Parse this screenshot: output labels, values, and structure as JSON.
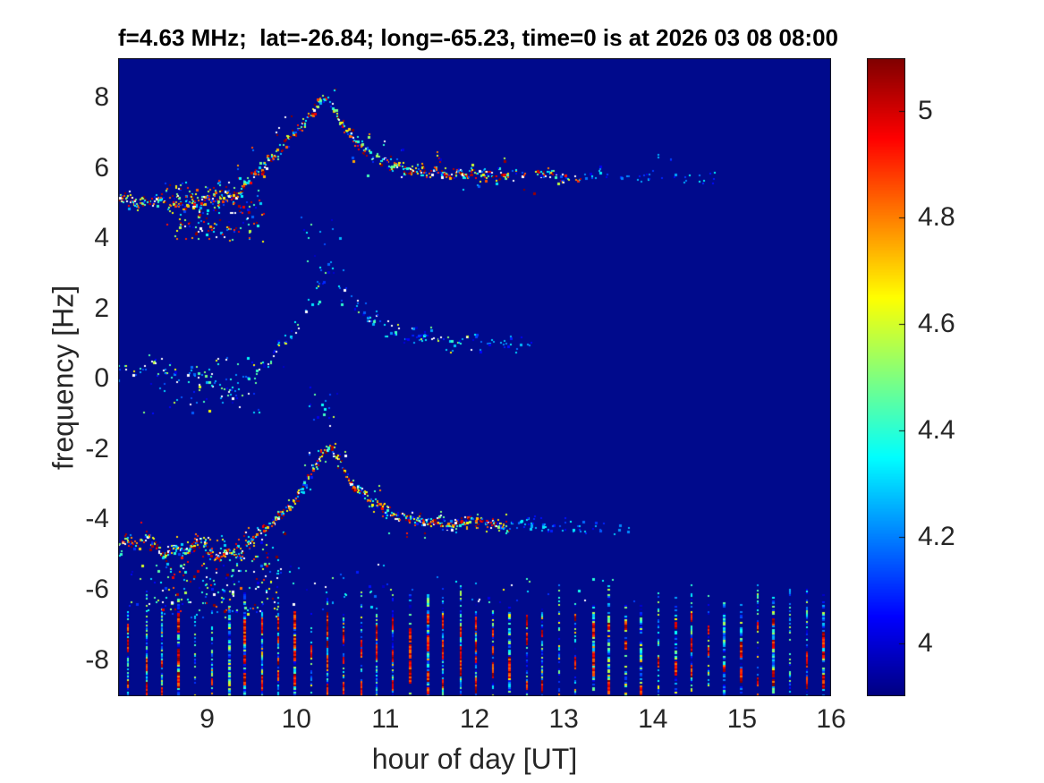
{
  "chart_data": {
    "type": "heatmap",
    "title": "f=4.63 MHz;  lat=-26.84; long=-65.23, time=0 is at 2026 03 08 08:00",
    "xlabel": "hour of day [UT]",
    "ylabel": "frequency [Hz]",
    "xlim": [
      8.0,
      16.0
    ],
    "ylim": [
      -9.03,
      9.12
    ],
    "xticks": [
      9,
      10,
      11,
      12,
      13,
      14,
      15,
      16
    ],
    "yticks": [
      8,
      6,
      4,
      2,
      0,
      -2,
      -4,
      -6,
      -8
    ],
    "grid": false,
    "colormap": "jet",
    "background_color": "#000A8C",
    "axis_color": "#151515",
    "tick_label_color": "#262626",
    "colorbar": {
      "position": "right",
      "range": [
        3.9,
        5.1
      ],
      "ticks": [
        5,
        4.8,
        4.6,
        4.4,
        4.2,
        4
      ]
    },
    "render_seed": 7,
    "dot_step": 0.0085,
    "palettes": {
      "hot": {
        "bins": [
          [
            0.3,
            4.72,
            5.12
          ],
          [
            0.27,
            4.25,
            4.55
          ],
          [
            0.15,
            3.98,
            4.22
          ],
          [
            0.12,
            4.55,
            4.72
          ],
          [
            0.07,
            5.02,
            5.15
          ],
          [
            0.09,
            -1,
            -1
          ]
        ]
      },
      "cool": {
        "bins": [
          [
            0.4,
            3.98,
            4.22
          ],
          [
            0.33,
            4.22,
            4.48
          ],
          [
            0.12,
            4.48,
            4.68
          ],
          [
            0.15,
            -1,
            -1
          ]
        ]
      }
    },
    "traces": [
      {
        "name": "upper-doppler-trace",
        "x_range": [
          8.0,
          14.8
        ],
        "points": [
          [
            8.0,
            5.05
          ],
          [
            8.12,
            5.15
          ],
          [
            8.22,
            4.95
          ],
          [
            8.3,
            5.1
          ],
          [
            8.42,
            5.05
          ],
          [
            8.5,
            5.2
          ],
          [
            8.58,
            4.9
          ],
          [
            8.66,
            5.05
          ],
          [
            8.74,
            4.85
          ],
          [
            8.82,
            5.1
          ],
          [
            8.9,
            4.95
          ],
          [
            9.0,
            5.1
          ],
          [
            9.1,
            5.0
          ],
          [
            9.2,
            5.3
          ],
          [
            9.32,
            5.2
          ],
          [
            9.42,
            5.45
          ],
          [
            9.52,
            5.75
          ],
          [
            9.62,
            6.05
          ],
          [
            9.72,
            6.3
          ],
          [
            9.82,
            6.5
          ],
          [
            9.92,
            6.8
          ],
          [
            10.02,
            7.1
          ],
          [
            10.12,
            7.4
          ],
          [
            10.22,
            7.7
          ],
          [
            10.3,
            7.98
          ],
          [
            10.38,
            7.8
          ],
          [
            10.48,
            7.4
          ],
          [
            10.58,
            7.0
          ],
          [
            10.7,
            6.65
          ],
          [
            10.85,
            6.35
          ],
          [
            11.0,
            6.15
          ],
          [
            11.2,
            6.0
          ],
          [
            11.45,
            5.9
          ],
          [
            11.7,
            5.88
          ],
          [
            12.0,
            5.85
          ],
          [
            12.3,
            5.8
          ],
          [
            12.6,
            5.83
          ],
          [
            12.9,
            5.78
          ],
          [
            13.2,
            5.74
          ],
          [
            13.5,
            5.78
          ],
          [
            13.8,
            5.71
          ],
          [
            14.2,
            5.75
          ],
          [
            14.8,
            5.74
          ]
        ],
        "density": [
          [
            8.0,
            0.85
          ],
          [
            12.1,
            0.8
          ],
          [
            12.5,
            0.45
          ],
          [
            13.2,
            0.3
          ],
          [
            13.8,
            0.18
          ],
          [
            14.8,
            0.1
          ]
        ],
        "jitter": 0.09,
        "outlier_prob": 0.05,
        "outlier_mag": 0.7,
        "thickness": 0.55,
        "palette": "hot",
        "tail_cool_after": 13.2
      },
      {
        "name": "middle-doppler-trace",
        "x_range": [
          8.0,
          12.65
        ],
        "points": [
          [
            8.0,
            0.35
          ],
          [
            8.2,
            0.25
          ],
          [
            8.4,
            0.45
          ],
          [
            8.6,
            0.15
          ],
          [
            8.8,
            -0.05
          ],
          [
            9.0,
            0.1
          ],
          [
            9.15,
            -0.2
          ],
          [
            9.3,
            -0.35
          ],
          [
            9.45,
            -0.1
          ],
          [
            9.6,
            0.35
          ],
          [
            9.75,
            0.75
          ],
          [
            9.9,
            1.15
          ],
          [
            10.05,
            1.7
          ],
          [
            10.18,
            2.3
          ],
          [
            10.3,
            2.85
          ],
          [
            10.4,
            3.15
          ],
          [
            10.5,
            2.6
          ],
          [
            10.62,
            2.25
          ],
          [
            10.75,
            1.9
          ],
          [
            10.9,
            1.6
          ],
          [
            11.1,
            1.35
          ],
          [
            11.3,
            1.15
          ],
          [
            11.5,
            1.18
          ],
          [
            11.7,
            1.05
          ],
          [
            11.9,
            1.15
          ],
          [
            12.1,
            1.02
          ],
          [
            12.3,
            1.08
          ],
          [
            12.5,
            0.98
          ],
          [
            12.65,
            1.05
          ]
        ],
        "density": [
          [
            8.0,
            0.3
          ],
          [
            9.4,
            0.25
          ],
          [
            9.8,
            0.4
          ],
          [
            10.4,
            0.35
          ],
          [
            10.8,
            0.5
          ],
          [
            11.8,
            0.45
          ],
          [
            12.65,
            0.25
          ]
        ],
        "jitter": 0.12,
        "outlier_prob": 0.08,
        "outlier_mag": 0.6,
        "thickness": 0.25,
        "palette": "cool",
        "tail_cool_after": 12.0
      },
      {
        "name": "lower-doppler-trace",
        "x_range": [
          8.0,
          13.9
        ],
        "points": [
          [
            8.0,
            -4.8
          ],
          [
            8.1,
            -4.55
          ],
          [
            8.2,
            -4.75
          ],
          [
            8.3,
            -4.5
          ],
          [
            8.42,
            -4.7
          ],
          [
            8.52,
            -4.95
          ],
          [
            8.62,
            -4.75
          ],
          [
            8.72,
            -5.05
          ],
          [
            8.82,
            -4.8
          ],
          [
            8.92,
            -4.65
          ],
          [
            9.02,
            -4.95
          ],
          [
            9.12,
            -5.1
          ],
          [
            9.25,
            -4.85
          ],
          [
            9.38,
            -5.05
          ],
          [
            9.5,
            -4.6
          ],
          [
            9.62,
            -4.35
          ],
          [
            9.75,
            -4.05
          ],
          [
            9.88,
            -3.75
          ],
          [
            10.0,
            -3.4
          ],
          [
            10.1,
            -2.95
          ],
          [
            10.2,
            -2.5
          ],
          [
            10.3,
            -2.12
          ],
          [
            10.38,
            -1.98
          ],
          [
            10.46,
            -2.25
          ],
          [
            10.56,
            -2.7
          ],
          [
            10.68,
            -3.1
          ],
          [
            10.82,
            -3.45
          ],
          [
            11.0,
            -3.75
          ],
          [
            11.2,
            -3.95
          ],
          [
            11.45,
            -4.05
          ],
          [
            11.7,
            -4.12
          ],
          [
            12.0,
            -4.08
          ],
          [
            12.3,
            -4.18
          ],
          [
            12.6,
            -4.12
          ],
          [
            12.9,
            -4.2
          ],
          [
            13.2,
            -4.22
          ],
          [
            13.55,
            -4.18
          ],
          [
            13.9,
            -4.25
          ]
        ],
        "density": [
          [
            8.0,
            0.9
          ],
          [
            12.2,
            0.85
          ],
          [
            12.7,
            0.4
          ],
          [
            13.3,
            0.22
          ],
          [
            13.9,
            0.12
          ]
        ],
        "jitter": 0.09,
        "outlier_prob": 0.05,
        "outlier_mag": 0.6,
        "thickness": 0.55,
        "palette": "hot",
        "tail_cool_after": 12.4
      }
    ],
    "noise_clouds": [
      {
        "x": [
          8.55,
          9.65
        ],
        "y": [
          3.9,
          5.6
        ],
        "count": 160,
        "palette": "hot"
      },
      {
        "x": [
          8.45,
          9.8
        ],
        "y": [
          -6.8,
          -4.5
        ],
        "count": 170,
        "palette": "hot"
      },
      {
        "x": [
          8.2,
          9.6
        ],
        "y": [
          -1.1,
          0.6
        ],
        "count": 50,
        "palette": "cool"
      },
      {
        "x": [
          10.05,
          10.55
        ],
        "y": [
          3.1,
          4.6
        ],
        "count": 14,
        "palette": "cool"
      },
      {
        "x": [
          10.15,
          10.5
        ],
        "y": [
          -1.4,
          -0.2
        ],
        "count": 16,
        "palette": "cool"
      },
      {
        "x": [
          8.05,
          11.0
        ],
        "y": [
          -6.6,
          -5.2
        ],
        "count": 90,
        "palette": "cool"
      },
      {
        "x": [
          11.0,
          13.8
        ],
        "y": [
          -6.4,
          -5.6
        ],
        "count": 25,
        "palette": "cool"
      }
    ],
    "stripes": {
      "x_start": 8.115,
      "x_end": 15.98,
      "interval": 0.1855,
      "y_bottom": -9.03,
      "y_top_range": [
        -6.6,
        -5.85
      ],
      "tall_prob": 0.12,
      "tall_extra": 0.5,
      "cell": 2,
      "fill_prob": 0.78,
      "upper_cool_limit": -6.6,
      "hot_run_prob": 0.09,
      "hot_run_len": [
        3,
        8
      ],
      "hot_range": [
        4.8,
        5.12
      ],
      "mid_prob": 0.07,
      "mid_range": [
        4.55,
        4.78
      ],
      "cool_split": 0.55,
      "cool_lo": [
        3.95,
        4.25
      ],
      "cool_hi": [
        4.25,
        4.58
      ]
    }
  }
}
